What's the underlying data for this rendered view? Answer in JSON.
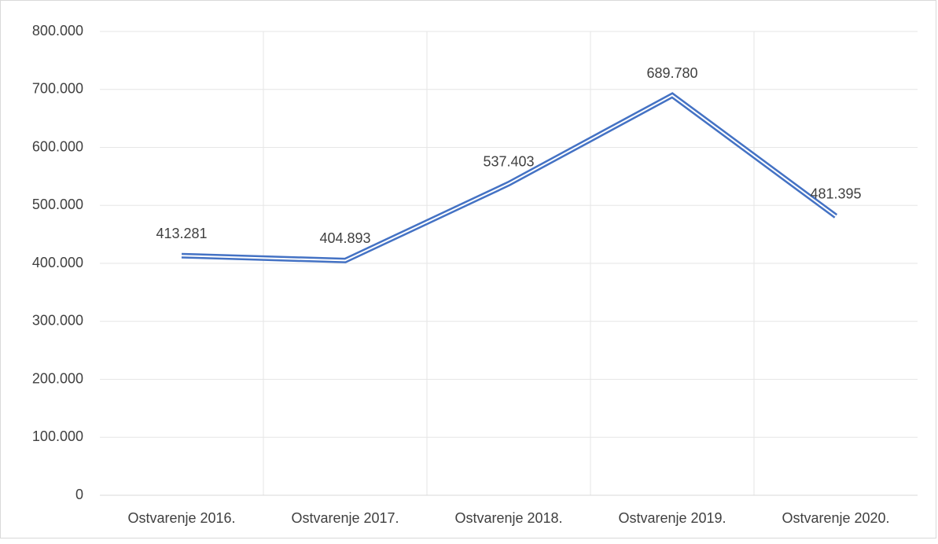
{
  "chart_data": {
    "type": "line",
    "categories": [
      "Ostvarenje 2016.",
      "Ostvarenje 2017.",
      "Ostvarenje 2018.",
      "Ostvarenje 2019.",
      "Ostvarenje 2020."
    ],
    "values": [
      413281,
      404893,
      537403,
      689780,
      481395
    ],
    "value_labels": [
      "413.281",
      "404.893",
      "537.403",
      "689.780",
      "481.395"
    ],
    "color": "#4472c4",
    "ylim": [
      0,
      800000
    ],
    "yticks": [
      0,
      {
        "value": 100000,
        "label": "100.000"
      },
      {
        "value": 200000,
        "label": "200.000"
      },
      {
        "value": 300000,
        "label": "300.000"
      },
      {
        "value": 400000,
        "label": "400.000"
      },
      {
        "value": 500000,
        "label": "500.000"
      },
      {
        "value": 600000,
        "label": "600.000"
      },
      {
        "value": 700000,
        "label": "700.000"
      },
      {
        "value": 800000,
        "label": "800.000"
      }
    ],
    "grid": true
  }
}
